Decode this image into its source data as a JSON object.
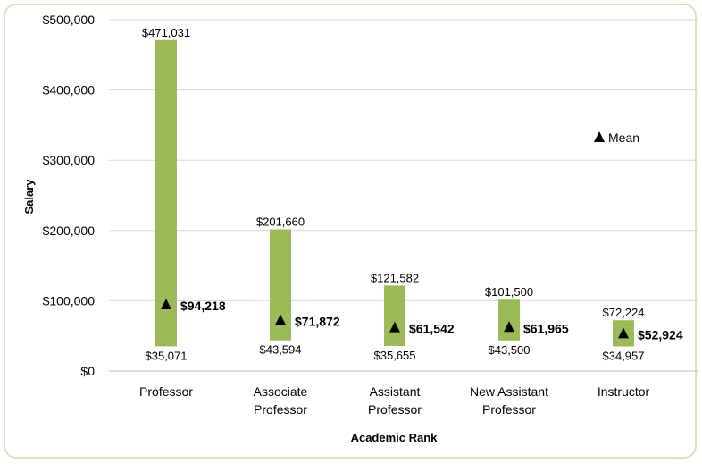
{
  "chart_data": {
    "type": "bar",
    "subtype": "floating-range-with-mean",
    "categories": [
      [
        "Professor"
      ],
      [
        "Associate",
        "Professor"
      ],
      [
        "Assistant",
        "Professor"
      ],
      [
        "New Assistant",
        "Professor"
      ],
      [
        "Instructor"
      ]
    ],
    "series": [
      {
        "name": "Min",
        "values": [
          35071,
          43594,
          35655,
          43500,
          34957
        ],
        "labels": [
          "$35,071",
          "$43,594",
          "$35,655",
          "$43,500",
          "$34,957"
        ]
      },
      {
        "name": "Max",
        "values": [
          471031,
          201660,
          121582,
          101500,
          72224
        ],
        "labels": [
          "$471,031",
          "$201,660",
          "$121,582",
          "$101,500",
          "$72,224"
        ]
      },
      {
        "name": "Mean",
        "values": [
          94218,
          71872,
          61542,
          61965,
          52924
        ],
        "labels": [
          "$94,218",
          "$71,872",
          "$61,542",
          "$61,965",
          "$52,924"
        ]
      }
    ],
    "legend": {
      "label": "Mean",
      "position": "right"
    },
    "xlabel": "Academic Rank",
    "ylabel": "Salary",
    "ylim": [
      0,
      500000
    ],
    "yticks": [
      0,
      100000,
      200000,
      300000,
      400000,
      500000
    ],
    "ytick_labels": [
      "$0",
      "$100,000",
      "$200,000",
      "$300,000",
      "$400,000",
      "$500,000"
    ],
    "grid": true,
    "colors": {
      "bar": "#9bbb59",
      "grid": "#d9d9d9",
      "marker": "#000000",
      "frame": "#d9e4bd"
    }
  }
}
